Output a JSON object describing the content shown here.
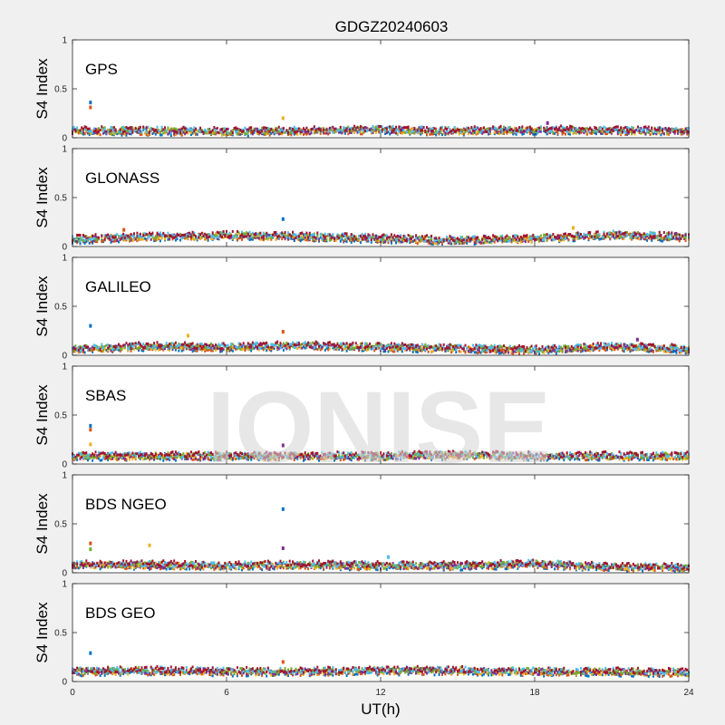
{
  "figure": {
    "title": "GDGZ20240603",
    "xlabel": "UT(h)",
    "watermark": "IONISE",
    "background": "#f0f0f0",
    "axes_background": "#ffffff"
  },
  "chart_data": {
    "type": "scatter",
    "title": "GDGZ20240603",
    "xlabel": "UT(h)",
    "xlim": [
      0,
      24
    ],
    "xticks": [
      0,
      6,
      12,
      18,
      24
    ],
    "ylim": [
      0,
      1
    ],
    "yticks": [
      0,
      0.5,
      1
    ],
    "grid": false,
    "legend": "none",
    "series_colors": [
      "#0072BD",
      "#D95319",
      "#EDB120",
      "#7E2F8E",
      "#77AC30",
      "#4DBEEE",
      "#A2142F"
    ],
    "panels": [
      {
        "label": "GPS",
        "ylabel": "S4 Index",
        "baseline": [
          [
            0,
            0.07
          ],
          [
            3,
            0.07
          ],
          [
            6,
            0.06
          ],
          [
            9,
            0.07
          ],
          [
            12,
            0.08
          ],
          [
            15,
            0.07
          ],
          [
            18,
            0.08
          ],
          [
            21,
            0.07
          ],
          [
            24,
            0.07
          ]
        ],
        "peaks": [
          [
            0.7,
            0.36
          ],
          [
            0.7,
            0.31
          ],
          [
            8.2,
            0.2
          ],
          [
            18.5,
            0.15
          ]
        ]
      },
      {
        "label": "GLONASS",
        "ylabel": "S4 Index",
        "baseline": [
          [
            0,
            0.07
          ],
          [
            3,
            0.1
          ],
          [
            6,
            0.11
          ],
          [
            9,
            0.1
          ],
          [
            12,
            0.08
          ],
          [
            15,
            0.06
          ],
          [
            18,
            0.08
          ],
          [
            21,
            0.12
          ],
          [
            24,
            0.09
          ]
        ],
        "peaks": [
          [
            8.2,
            0.28
          ],
          [
            2,
            0.17
          ],
          [
            19.5,
            0.19
          ],
          [
            23.5,
            0.13
          ]
        ]
      },
      {
        "label": "GALILEO",
        "ylabel": "S4 Index",
        "baseline": [
          [
            0,
            0.06
          ],
          [
            3,
            0.09
          ],
          [
            6,
            0.08
          ],
          [
            9,
            0.1
          ],
          [
            12,
            0.08
          ],
          [
            15,
            0.07
          ],
          [
            18,
            0.05
          ],
          [
            21,
            0.09
          ],
          [
            24,
            0.06
          ]
        ],
        "peaks": [
          [
            0.7,
            0.3
          ],
          [
            8.2,
            0.24
          ],
          [
            4.5,
            0.2
          ],
          [
            22,
            0.16
          ]
        ]
      },
      {
        "label": "SBAS",
        "ylabel": "S4 Index",
        "baseline": [
          [
            0,
            0.08
          ],
          [
            3,
            0.08
          ],
          [
            6,
            0.08
          ],
          [
            9,
            0.08
          ],
          [
            12,
            0.08
          ],
          [
            15,
            0.09
          ],
          [
            18,
            0.08
          ],
          [
            21,
            0.08
          ],
          [
            24,
            0.08
          ]
        ],
        "peaks": [
          [
            0.7,
            0.39
          ],
          [
            0.7,
            0.35
          ],
          [
            0.7,
            0.2
          ],
          [
            8.2,
            0.19
          ]
        ]
      },
      {
        "label": "BDS NGEO",
        "ylabel": "S4 Index",
        "baseline": [
          [
            0,
            0.08
          ],
          [
            3,
            0.08
          ],
          [
            6,
            0.07
          ],
          [
            9,
            0.08
          ],
          [
            12,
            0.07
          ],
          [
            15,
            0.07
          ],
          [
            18,
            0.09
          ],
          [
            21,
            0.06
          ],
          [
            24,
            0.05
          ]
        ],
        "peaks": [
          [
            8.2,
            0.65
          ],
          [
            0.7,
            0.3
          ],
          [
            3,
            0.28
          ],
          [
            8.2,
            0.25
          ],
          [
            0.7,
            0.24
          ],
          [
            12.3,
            0.16
          ]
        ]
      },
      {
        "label": "BDS GEO",
        "ylabel": "S4 Index",
        "baseline": [
          [
            0,
            0.1
          ],
          [
            3,
            0.11
          ],
          [
            6,
            0.1
          ],
          [
            9,
            0.1
          ],
          [
            12,
            0.11
          ],
          [
            15,
            0.11
          ],
          [
            18,
            0.1
          ],
          [
            21,
            0.1
          ],
          [
            24,
            0.09
          ]
        ],
        "peaks": [
          [
            0.7,
            0.29
          ],
          [
            8.2,
            0.2
          ]
        ]
      }
    ]
  }
}
